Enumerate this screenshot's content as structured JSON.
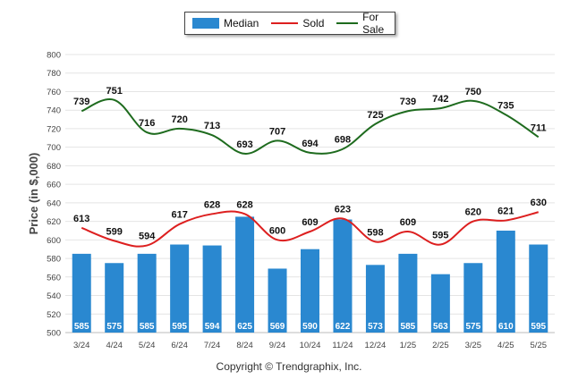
{
  "chart_data": {
    "type": "bar",
    "categories": [
      "3/24",
      "4/24",
      "5/24",
      "6/24",
      "7/24",
      "8/24",
      "9/24",
      "10/24",
      "11/24",
      "12/24",
      "1/25",
      "2/25",
      "3/25",
      "4/25",
      "5/25"
    ],
    "ylabel": "Price (in $,000)",
    "ylim": [
      500,
      800
    ],
    "yticks": [
      500,
      520,
      540,
      560,
      580,
      600,
      620,
      640,
      660,
      680,
      700,
      720,
      740,
      760,
      780,
      800
    ],
    "grid": true,
    "legend_position": "top-center",
    "series": [
      {
        "name": "Median",
        "type": "bar",
        "color": "#2a88d0",
        "values": [
          585,
          575,
          585,
          595,
          594,
          625,
          569,
          590,
          622,
          573,
          585,
          563,
          575,
          610,
          595
        ]
      },
      {
        "name": "Sold",
        "type": "line",
        "color": "#dd1f1f",
        "values": [
          613,
          599,
          594,
          617,
          628,
          628,
          600,
          609,
          623,
          598,
          609,
          595,
          620,
          621,
          630
        ]
      },
      {
        "name": "For Sale",
        "type": "line",
        "color": "#1e6b1e",
        "values": [
          739,
          751,
          716,
          720,
          713,
          693,
          707,
          694,
          698,
          725,
          739,
          742,
          750,
          735,
          711
        ]
      }
    ]
  },
  "footer": {
    "copyright": "Copyright © Trendgraphix, Inc."
  }
}
